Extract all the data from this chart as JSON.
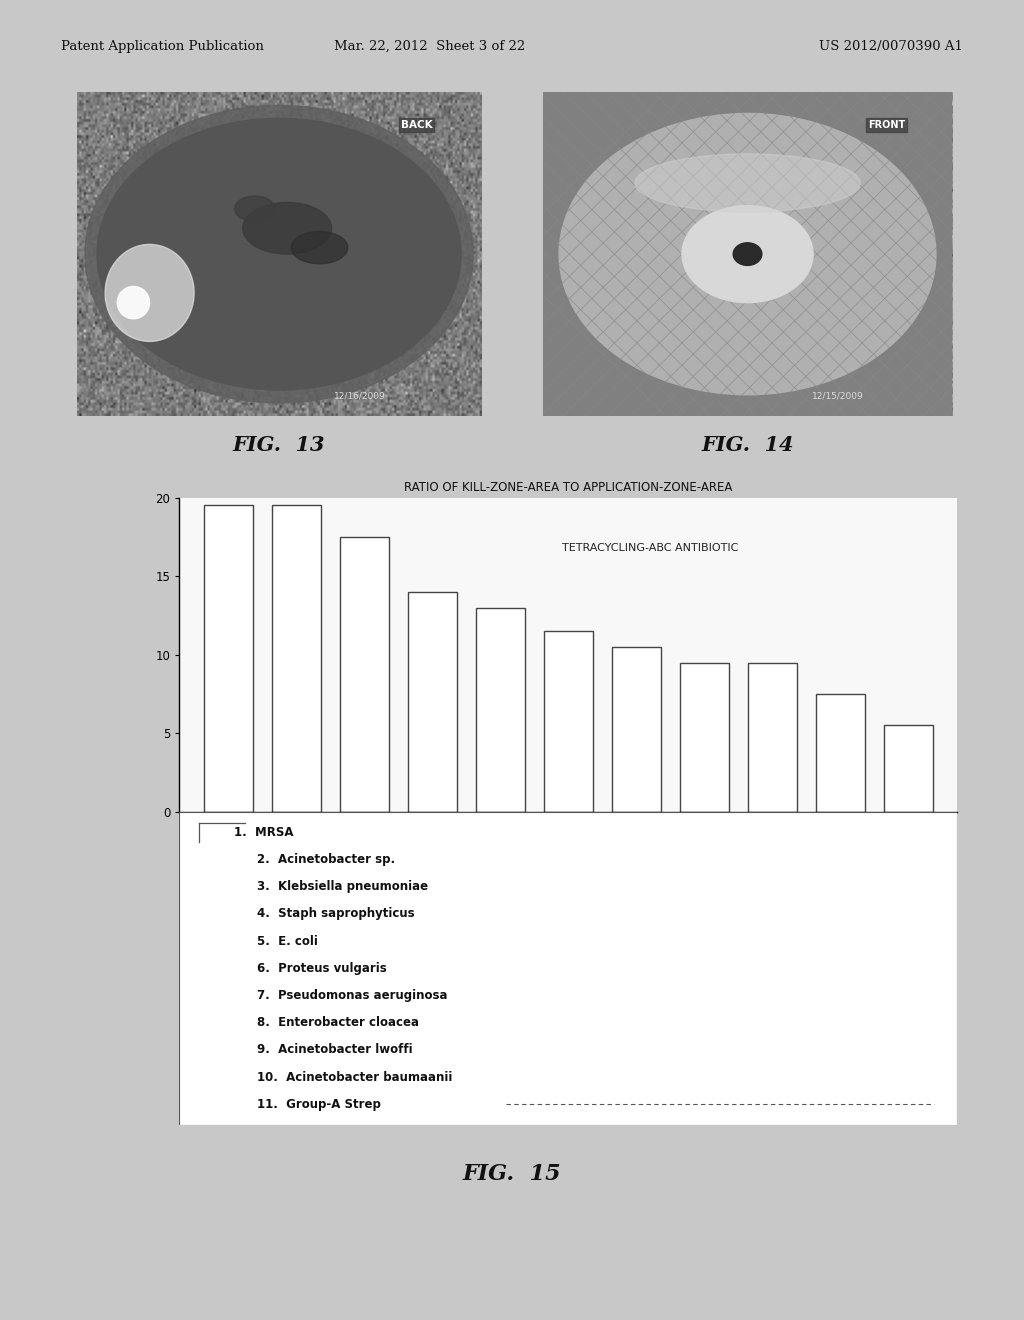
{
  "page_header_left": "Patent Application Publication",
  "page_header_mid": "Mar. 22, 2012  Sheet 3 of 22",
  "page_header_right": "US 2012/0070390 A1",
  "fig13_label": "FIG.  13",
  "fig14_label": "FIG.  14",
  "fig13_caption": "BACK",
  "fig14_caption": "FRONT",
  "fig13_date": "12/16/2009",
  "fig14_date": "12/15/2009",
  "chart_title": "RATIO OF KILL-ZONE-AREA TO APPLICATION-ZONE-AREA",
  "chart_subtitle": "TETRACYCLING-ABC ANTIBIOTIC",
  "bar_values": [
    19.5,
    19.5,
    17.5,
    14.0,
    13.0,
    11.5,
    10.5,
    9.5,
    9.5,
    7.5,
    5.5
  ],
  "bar_categories": [
    1,
    2,
    3,
    4,
    5,
    6,
    7,
    8,
    9,
    10,
    11
  ],
  "ylim": [
    0,
    20
  ],
  "yticks": [
    0,
    5,
    10,
    15,
    20
  ],
  "bar_color": "#ffffff",
  "bar_edge_color": "#444444",
  "legend_items": [
    "1.  MRSA",
    "2.  Acinetobacter sp.",
    "3.  Klebsiella pneumoniae",
    "4.  Staph saprophyticus",
    "5.  E. coli",
    "6.  Proteus vulgaris",
    "7.  Pseudomonas aeruginosa",
    "8.  Enterobacter cloacea",
    "9.  Acinetobacter lwoffi",
    "10.  Acinetobacter baumaanii",
    "11.  Group-A Strep"
  ],
  "fig15_label": "FIG.  15",
  "page_bg": "#c8c8c8"
}
